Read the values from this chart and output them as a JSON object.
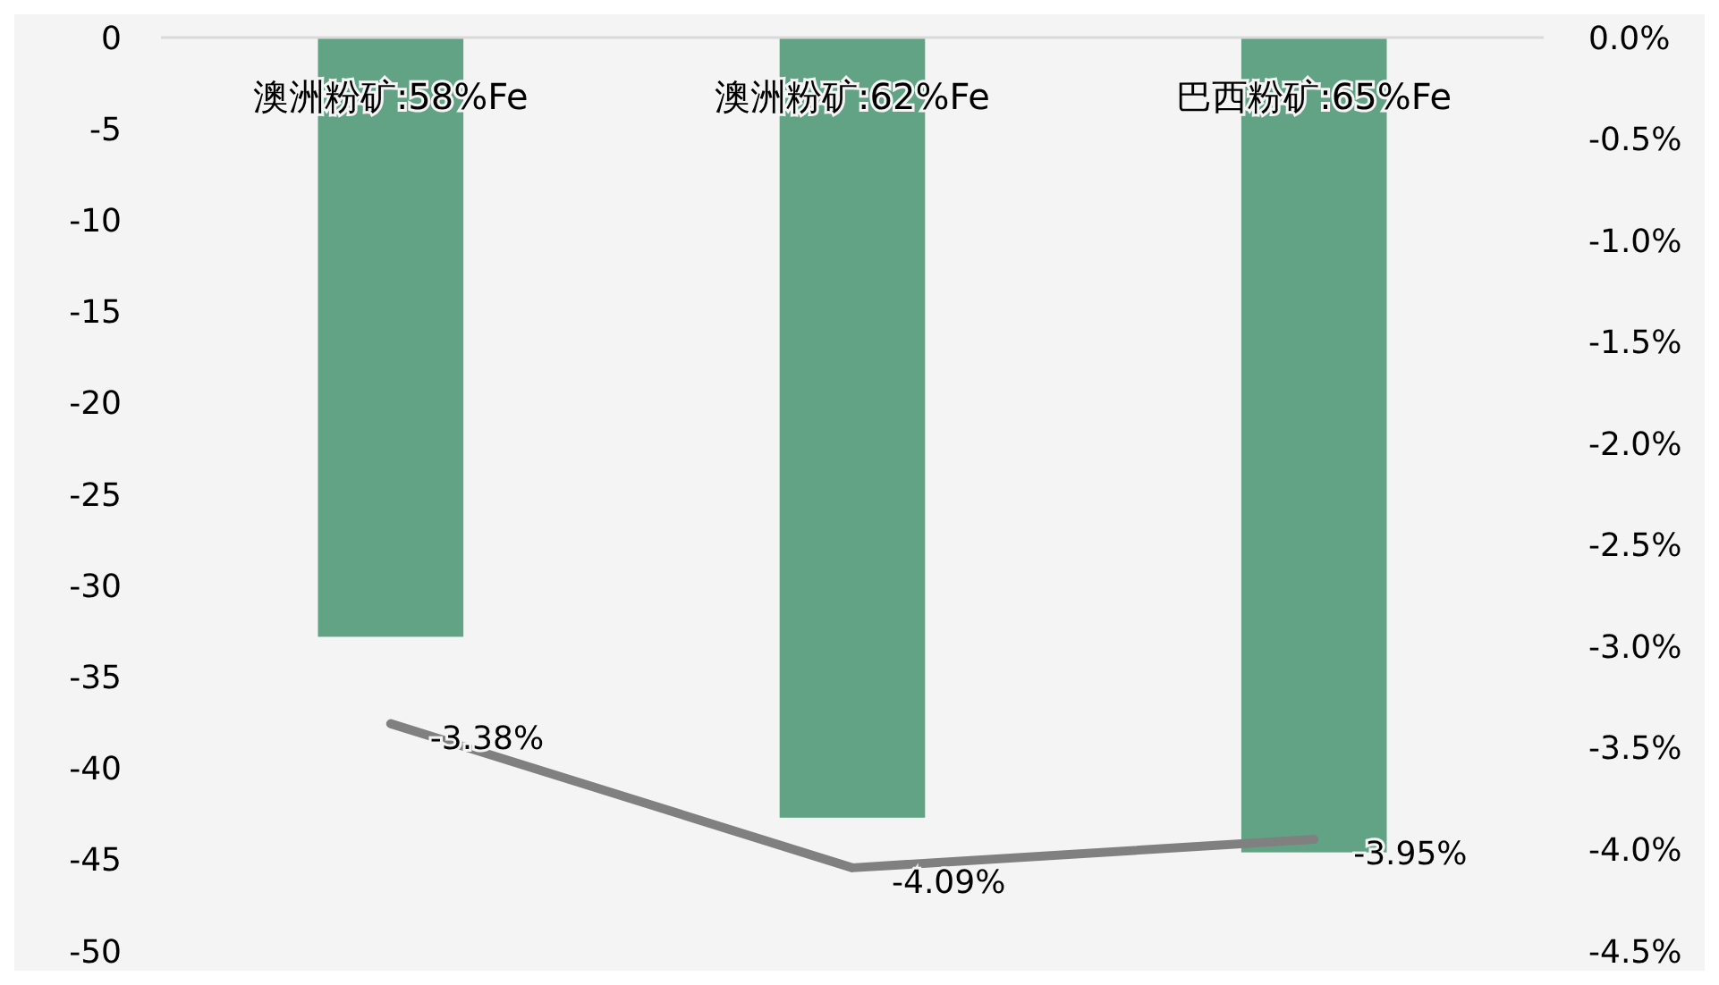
{
  "chart_data": {
    "type": "bar",
    "categories": [
      "澳洲粉矿:58%Fe",
      "澳洲粉矿:62%Fe",
      "巴西粉矿:65%Fe"
    ],
    "series": [
      {
        "color": "#62a386",
        "values": [
          -32.8,
          -42.7,
          -44.6
        ]
      },
      {
        "type": "line",
        "axis": "y2",
        "color": "#808080",
        "values": [
          -3.38,
          -4.09,
          -3.95
        ],
        "value_labels": [
          "-3.38%",
          "-4.09%",
          "-3.95%"
        ]
      }
    ],
    "ylim": [
      -50,
      0
    ],
    "yticks": [
      0,
      -5,
      -10,
      -15,
      -20,
      -25,
      -30,
      -35,
      -40,
      -45,
      -50
    ],
    "y2lim": [
      -4.5,
      0
    ],
    "y2ticks": [
      {
        "value": 0,
        "label": "0.0%"
      },
      {
        "value": -0.5,
        "label": "-0.5%"
      },
      {
        "value": -1,
        "label": "-1.0%"
      },
      {
        "value": -1.5,
        "label": "-1.5%"
      },
      {
        "value": -2,
        "label": "-2.0%"
      },
      {
        "value": -2.5,
        "label": "-2.5%"
      },
      {
        "value": -3,
        "label": "-3.0%"
      },
      {
        "value": -3.5,
        "label": "-3.5%"
      },
      {
        "value": -4,
        "label": "-4.0%"
      },
      {
        "value": -4.5,
        "label": "-4.5%"
      }
    ],
    "grid": false,
    "marker": "none",
    "line_style": "solid"
  }
}
